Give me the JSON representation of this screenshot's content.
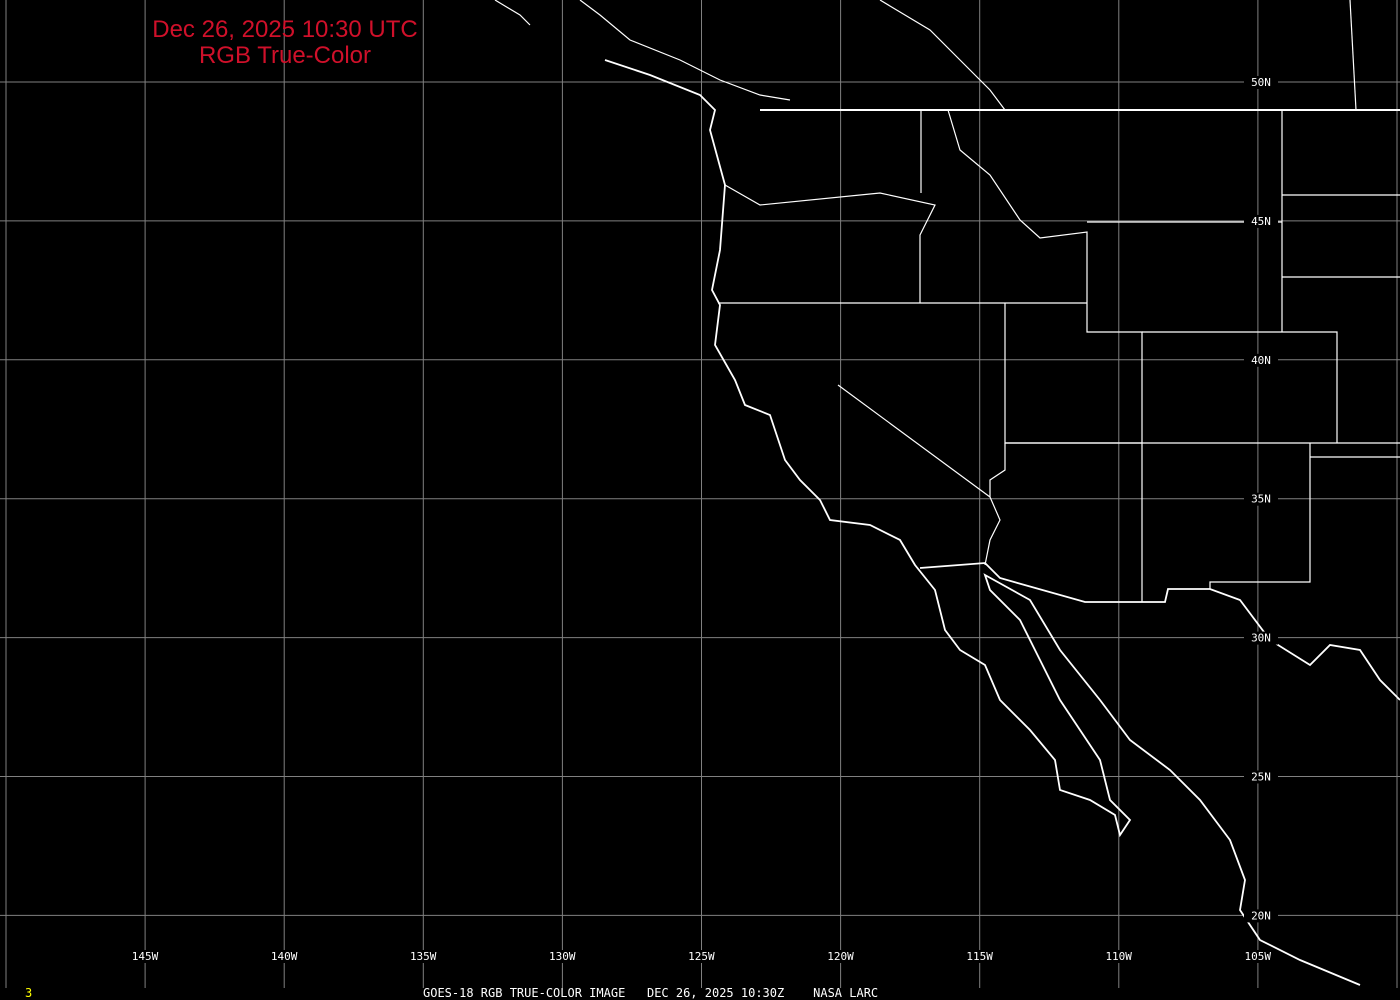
{
  "title": {
    "line1": "Dec 26, 2025 10:30 UTC",
    "line2": "RGB True-Color"
  },
  "footer": {
    "frame": "3",
    "caption": "GOES-18 RGB TRUE-COLOR IMAGE   DEC 26, 2025 10:30Z    NASA LARC"
  },
  "grid": {
    "longitudes": [
      "145W",
      "140W",
      "135W",
      "130W",
      "125W",
      "120W",
      "115W",
      "110W",
      "105W"
    ],
    "latitudes": [
      "50N",
      "45N",
      "40N",
      "35N",
      "30N",
      "25N",
      "20N"
    ]
  },
  "colors": {
    "background": "#000000",
    "title": "#d0102a",
    "grid": "#808080",
    "boundaries": "#ffffff",
    "frame_number": "#ffff00"
  }
}
